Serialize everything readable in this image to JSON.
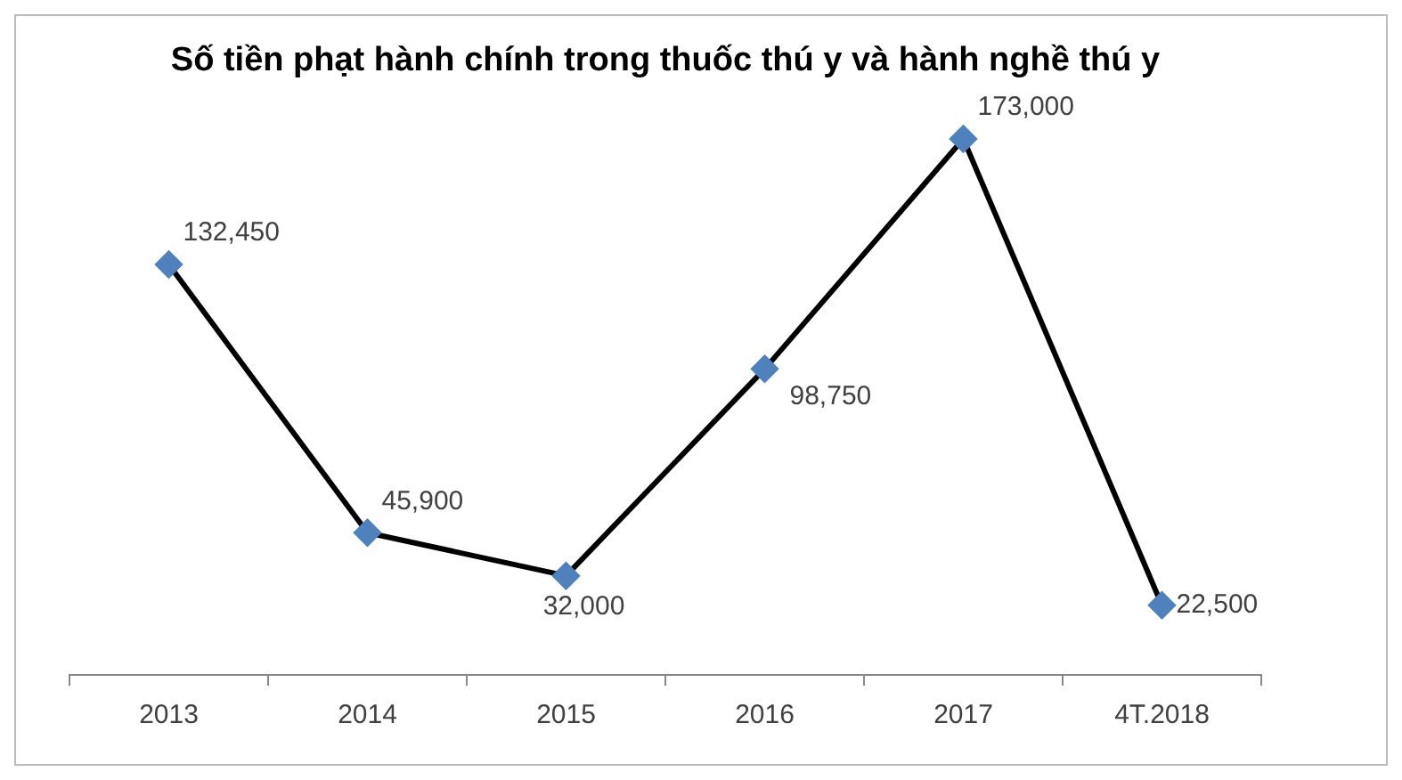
{
  "chart_data": {
    "type": "line",
    "title": "Số tiền phạt hành chính trong thuốc thú y và hành nghề thú y",
    "categories": [
      "2013",
      "2014",
      "2015",
      "2016",
      "2017",
      "4T.2018"
    ],
    "series": [
      {
        "color": "#000000",
        "colors": [
          "#4f81bd",
          "#4f81bd",
          "#4f81bd",
          "#4f81bd",
          "#4f81bd",
          "#4f81bd"
        ],
        "values": [
          132450,
          45900,
          32000,
          98750,
          173000,
          22500
        ],
        "value_labels": [
          "132,450",
          "45,900",
          "32,000",
          "98,750",
          "173,000",
          "22,500"
        ]
      }
    ],
    "marker": "diamond",
    "legend": false
  }
}
